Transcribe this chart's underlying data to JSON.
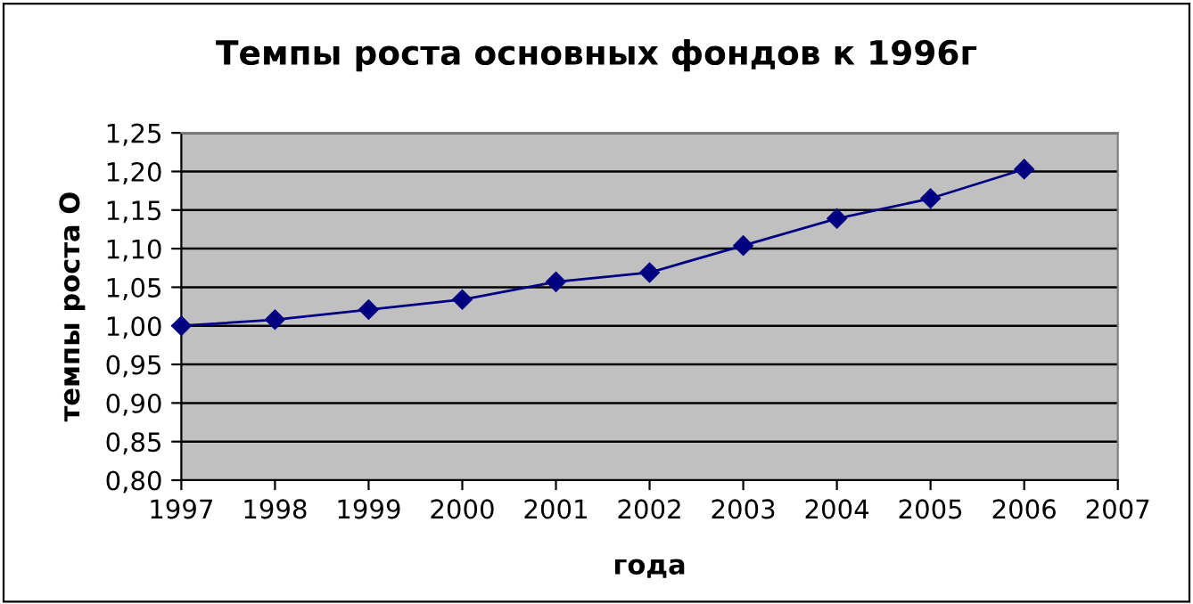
{
  "chart_data": {
    "type": "line",
    "title": "Темпы роста основных фондов к 1996г",
    "xlabel": "года",
    "ylabel": "темпы роста О",
    "x": [
      1997,
      1998,
      1999,
      2000,
      2001,
      2002,
      2003,
      2004,
      2005,
      2006
    ],
    "series": [
      {
        "color": "#000080",
        "values": [
          1.0,
          1.008,
          1.021,
          1.034,
          1.057,
          1.069,
          1.104,
          1.139,
          1.165,
          1.203
        ]
      }
    ],
    "xlim": [
      1997,
      2007
    ],
    "xticks": [
      1997,
      1998,
      1999,
      2000,
      2001,
      2002,
      2003,
      2004,
      2005,
      2006,
      2007
    ],
    "ylim": [
      0.8,
      1.25
    ],
    "yticks": [
      {
        "value": 0.8,
        "label": "0,80"
      },
      {
        "value": 0.85,
        "label": "0,85"
      },
      {
        "value": 0.9,
        "label": "0,90"
      },
      {
        "value": 0.95,
        "label": "0,95"
      },
      {
        "value": 1.0,
        "label": "1,00"
      },
      {
        "value": 1.05,
        "label": "1,05"
      },
      {
        "value": 1.1,
        "label": "1,10"
      },
      {
        "value": 1.15,
        "label": "1,15"
      },
      {
        "value": 1.2,
        "label": "1,20"
      },
      {
        "value": 1.25,
        "label": "1,25"
      }
    ],
    "grid": "y",
    "marker": "diamond",
    "line_style": "solid"
  }
}
